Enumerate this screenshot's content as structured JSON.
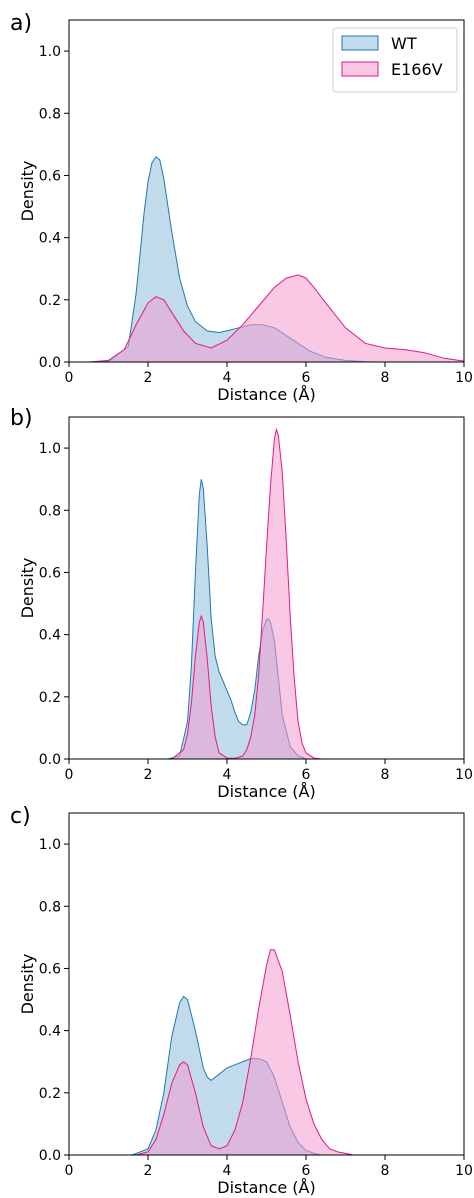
{
  "chart_data": [
    {
      "panel_label": "a)",
      "type": "area",
      "xlabel": "Distance (Å)",
      "ylabel": "Density",
      "xlim": [
        0,
        10
      ],
      "ylim": [
        0,
        1.1
      ],
      "xticks": [
        "0",
        "2",
        "4",
        "6",
        "8",
        "10"
      ],
      "yticks": [
        "0.0",
        "0.2",
        "0.4",
        "0.6",
        "0.8",
        "1.0"
      ],
      "legend": {
        "position": "top-right",
        "show": true
      },
      "series": [
        {
          "name": "WT",
          "color": "#1f77b4",
          "fill": "#8fbdd9",
          "x": [
            0.5,
            1.0,
            1.5,
            1.7,
            1.9,
            2.0,
            2.1,
            2.2,
            2.3,
            2.4,
            2.6,
            2.8,
            3.0,
            3.2,
            3.5,
            3.8,
            4.0,
            4.3,
            4.6,
            4.9,
            5.2,
            5.5,
            5.8,
            6.1,
            6.5,
            7.0,
            7.5,
            8.0
          ],
          "y": [
            0.0,
            0.002,
            0.05,
            0.22,
            0.48,
            0.58,
            0.64,
            0.66,
            0.65,
            0.59,
            0.42,
            0.27,
            0.18,
            0.13,
            0.1,
            0.095,
            0.1,
            0.11,
            0.12,
            0.12,
            0.11,
            0.085,
            0.06,
            0.035,
            0.015,
            0.005,
            0.001,
            0.0
          ]
        },
        {
          "name": "E166V",
          "color": "#e01b84",
          "fill": "#f39bcf",
          "x": [
            0.5,
            1.0,
            1.4,
            1.7,
            2.0,
            2.2,
            2.4,
            2.6,
            2.9,
            3.2,
            3.6,
            4.0,
            4.4,
            4.8,
            5.2,
            5.5,
            5.8,
            6.0,
            6.2,
            6.5,
            7.0,
            7.5,
            8.0,
            8.5,
            9.0,
            9.5,
            10.0
          ],
          "y": [
            0.0,
            0.005,
            0.04,
            0.12,
            0.19,
            0.21,
            0.2,
            0.16,
            0.1,
            0.06,
            0.045,
            0.07,
            0.12,
            0.18,
            0.24,
            0.27,
            0.28,
            0.27,
            0.24,
            0.19,
            0.11,
            0.06,
            0.045,
            0.04,
            0.03,
            0.012,
            0.003
          ]
        }
      ]
    },
    {
      "panel_label": "b)",
      "type": "area",
      "xlabel": "Distance (Å)",
      "ylabel": "Density",
      "xlim": [
        0,
        10
      ],
      "ylim": [
        0,
        1.1
      ],
      "xticks": [
        "0",
        "2",
        "4",
        "6",
        "8",
        "10"
      ],
      "yticks": [
        "0.0",
        "0.2",
        "0.4",
        "0.6",
        "0.8",
        "1.0"
      ],
      "legend": {
        "show": false
      },
      "series": [
        {
          "name": "WT",
          "color": "#1f77b4",
          "fill": "#8fbdd9",
          "x": [
            2.5,
            2.8,
            3.0,
            3.1,
            3.2,
            3.3,
            3.35,
            3.4,
            3.5,
            3.6,
            3.7,
            3.8,
            3.9,
            4.0,
            4.1,
            4.2,
            4.3,
            4.4,
            4.5,
            4.6,
            4.7,
            4.8,
            4.9,
            5.0,
            5.05,
            5.1,
            5.2,
            5.3,
            5.4,
            5.6,
            5.8,
            6.0
          ],
          "y": [
            0.0,
            0.01,
            0.12,
            0.3,
            0.6,
            0.85,
            0.9,
            0.87,
            0.68,
            0.45,
            0.33,
            0.28,
            0.25,
            0.22,
            0.19,
            0.15,
            0.12,
            0.11,
            0.11,
            0.15,
            0.22,
            0.33,
            0.41,
            0.45,
            0.45,
            0.44,
            0.38,
            0.26,
            0.14,
            0.04,
            0.01,
            0.0
          ]
        },
        {
          "name": "E166V",
          "color": "#e01b84",
          "fill": "#f39bcf",
          "x": [
            2.6,
            2.9,
            3.0,
            3.1,
            3.2,
            3.3,
            3.35,
            3.4,
            3.5,
            3.6,
            3.7,
            3.8,
            4.0,
            4.2,
            4.4,
            4.5,
            4.6,
            4.7,
            4.8,
            4.9,
            5.0,
            5.1,
            5.2,
            5.25,
            5.3,
            5.4,
            5.5,
            5.6,
            5.7,
            5.8,
            5.9,
            6.0,
            6.2,
            6.4
          ],
          "y": [
            0.0,
            0.03,
            0.08,
            0.18,
            0.33,
            0.44,
            0.46,
            0.44,
            0.32,
            0.17,
            0.07,
            0.02,
            0.003,
            0.002,
            0.01,
            0.03,
            0.07,
            0.14,
            0.27,
            0.47,
            0.68,
            0.88,
            1.03,
            1.06,
            1.04,
            0.92,
            0.7,
            0.46,
            0.26,
            0.12,
            0.05,
            0.02,
            0.003,
            0.0
          ]
        }
      ]
    },
    {
      "panel_label": "c)",
      "type": "area",
      "xlabel": "Distance (Å)",
      "ylabel": "Density",
      "xlim": [
        0,
        10
      ],
      "ylim": [
        0,
        1.1
      ],
      "xticks": [
        "0",
        "2",
        "4",
        "6",
        "8",
        "10"
      ],
      "yticks": [
        "0.0",
        "0.2",
        "0.4",
        "0.6",
        "0.8",
        "1.0"
      ],
      "legend": {
        "show": false
      },
      "series": [
        {
          "name": "WT",
          "color": "#1f77b4",
          "fill": "#8fbdd9",
          "x": [
            1.6,
            2.0,
            2.2,
            2.4,
            2.6,
            2.8,
            2.9,
            3.0,
            3.2,
            3.4,
            3.5,
            3.6,
            3.8,
            4.0,
            4.2,
            4.4,
            4.6,
            4.8,
            5.0,
            5.2,
            5.4,
            5.6,
            5.8,
            6.0,
            6.2,
            6.4
          ],
          "y": [
            0.0,
            0.02,
            0.08,
            0.2,
            0.38,
            0.49,
            0.51,
            0.5,
            0.4,
            0.28,
            0.25,
            0.24,
            0.26,
            0.28,
            0.29,
            0.3,
            0.31,
            0.31,
            0.3,
            0.25,
            0.17,
            0.09,
            0.04,
            0.015,
            0.005,
            0.0
          ]
        },
        {
          "name": "E166V",
          "color": "#e01b84",
          "fill": "#f39bcf",
          "x": [
            1.7,
            2.0,
            2.2,
            2.4,
            2.6,
            2.8,
            2.9,
            3.0,
            3.2,
            3.4,
            3.6,
            3.8,
            4.0,
            4.2,
            4.4,
            4.6,
            4.8,
            5.0,
            5.1,
            5.2,
            5.4,
            5.6,
            5.8,
            6.0,
            6.2,
            6.4,
            6.6,
            6.8,
            7.0,
            7.2
          ],
          "y": [
            0.0,
            0.01,
            0.05,
            0.13,
            0.23,
            0.29,
            0.3,
            0.29,
            0.2,
            0.09,
            0.03,
            0.02,
            0.03,
            0.08,
            0.17,
            0.31,
            0.47,
            0.61,
            0.66,
            0.66,
            0.59,
            0.45,
            0.3,
            0.18,
            0.1,
            0.05,
            0.02,
            0.01,
            0.005,
            0.0
          ]
        }
      ]
    }
  ]
}
